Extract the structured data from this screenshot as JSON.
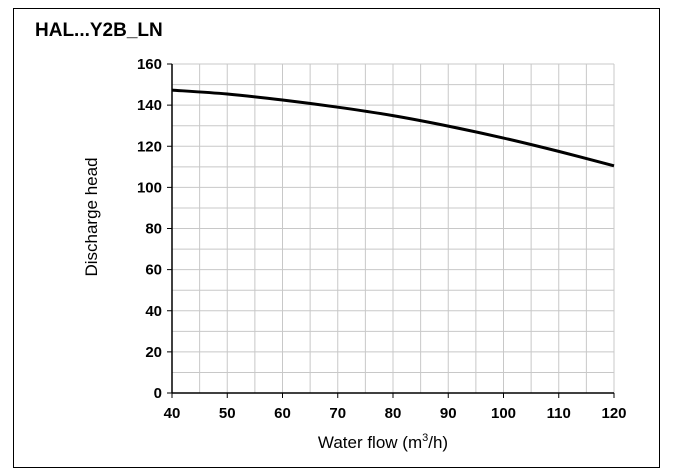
{
  "chart_data": {
    "type": "line",
    "title": "HAL...Y2B_LN",
    "xlabel": "Water flow (m³/h)",
    "ylabel": "Discharge head",
    "xlim": [
      40,
      120
    ],
    "ylim": [
      0,
      160
    ],
    "x_ticks": [
      40,
      50,
      60,
      70,
      80,
      90,
      100,
      110,
      120
    ],
    "y_ticks": [
      0,
      20,
      40,
      60,
      80,
      100,
      120,
      140,
      160
    ],
    "grid": true,
    "series": [
      {
        "x": [
          40,
          50,
          60,
          70,
          80,
          90,
          100,
          110,
          120
        ],
        "y": [
          147.3,
          145.4,
          142.5,
          139.0,
          134.9,
          129.8,
          124.0,
          117.5,
          110.5
        ]
      }
    ],
    "colors": {
      "line": "#000000",
      "grid": "#c8c8c8",
      "frame": "#000000"
    }
  }
}
